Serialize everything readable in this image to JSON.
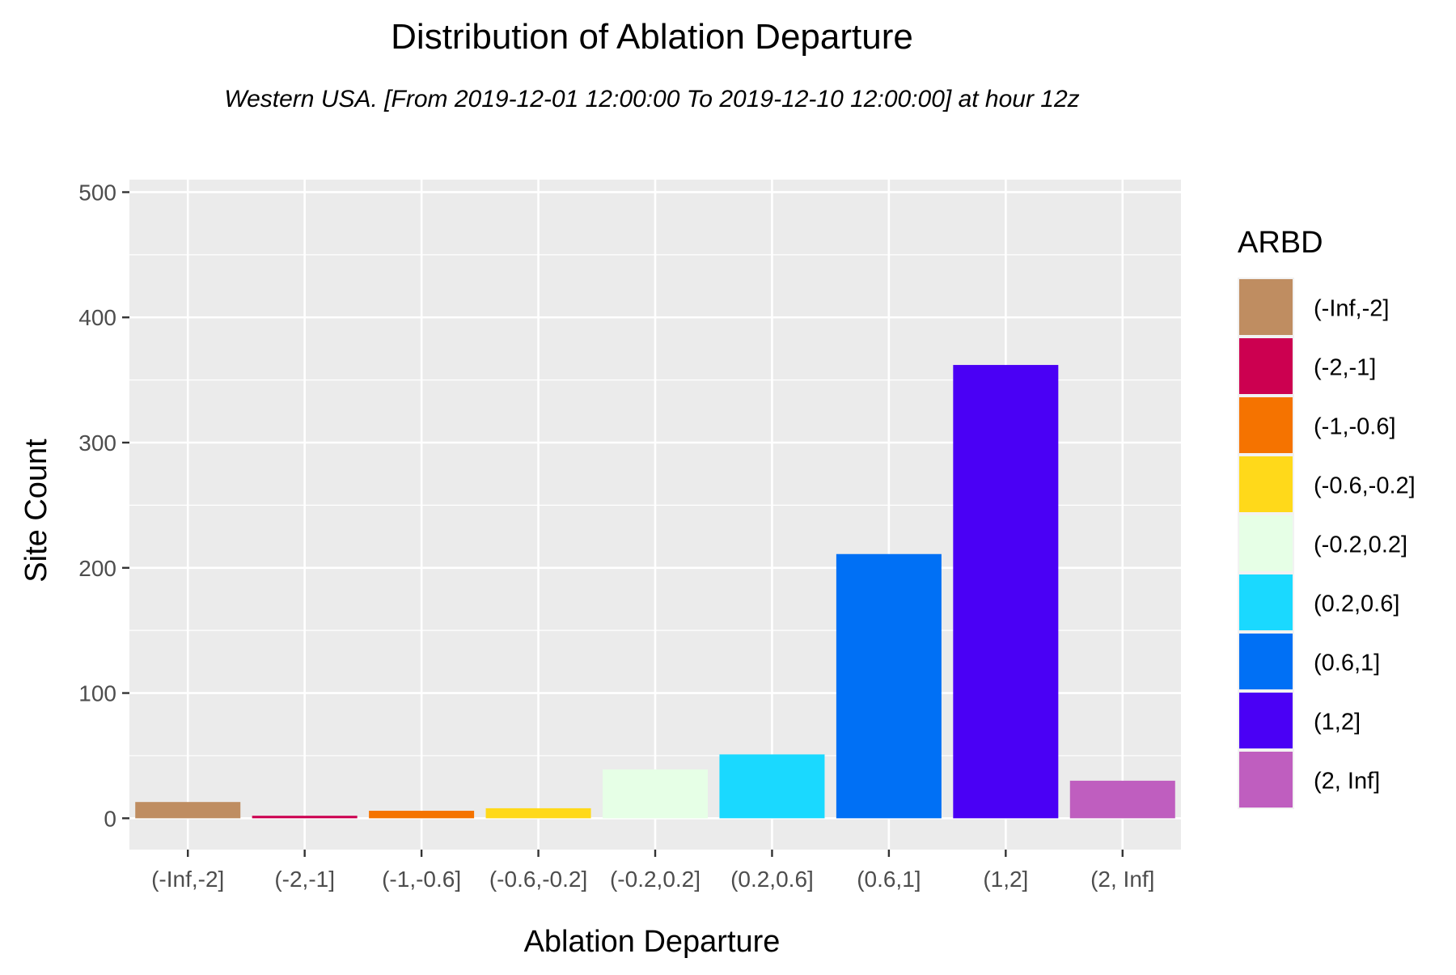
{
  "chart_data": {
    "type": "bar",
    "title": "Distribution of Ablation Departure",
    "subtitle": "Western USA.  [From 2019-12-01 12:00:00 To 2019-12-10 12:00:00] at hour 12z",
    "xlabel": "Ablation Departure",
    "ylabel": "Site Count",
    "categories": [
      "(-Inf,-2]",
      "(-2,-1]",
      "(-1,-0.6]",
      "(-0.6,-0.2]",
      "(-0.2,0.2]",
      "(0.2,0.6]",
      "(0.6,1]",
      "(1,2]",
      "(2, Inf]"
    ],
    "values": [
      13,
      2,
      6,
      8,
      39,
      51,
      211,
      362,
      30
    ],
    "colors": [
      "#BF8D61",
      "#CC0050",
      "#F57300",
      "#FFD91A",
      "#E6FFE6",
      "#1AD9FF",
      "#0070F5",
      "#4A00F5",
      "#BF5EBF"
    ],
    "ylim": [
      -25,
      510
    ],
    "yticks": [
      0,
      100,
      200,
      300,
      400,
      500
    ],
    "grid": true,
    "panel_background": "#EBEBEB",
    "legend": {
      "title": "ARBD",
      "placement": "right",
      "labels": [
        "(-Inf,-2]",
        "(-2,-1]",
        "(-1,-0.6]",
        "(-0.6,-0.2]",
        "(-0.2,0.2]",
        "(0.2,0.6]",
        "(0.6,1]",
        "(1,2]",
        "(2, Inf]"
      ]
    }
  }
}
